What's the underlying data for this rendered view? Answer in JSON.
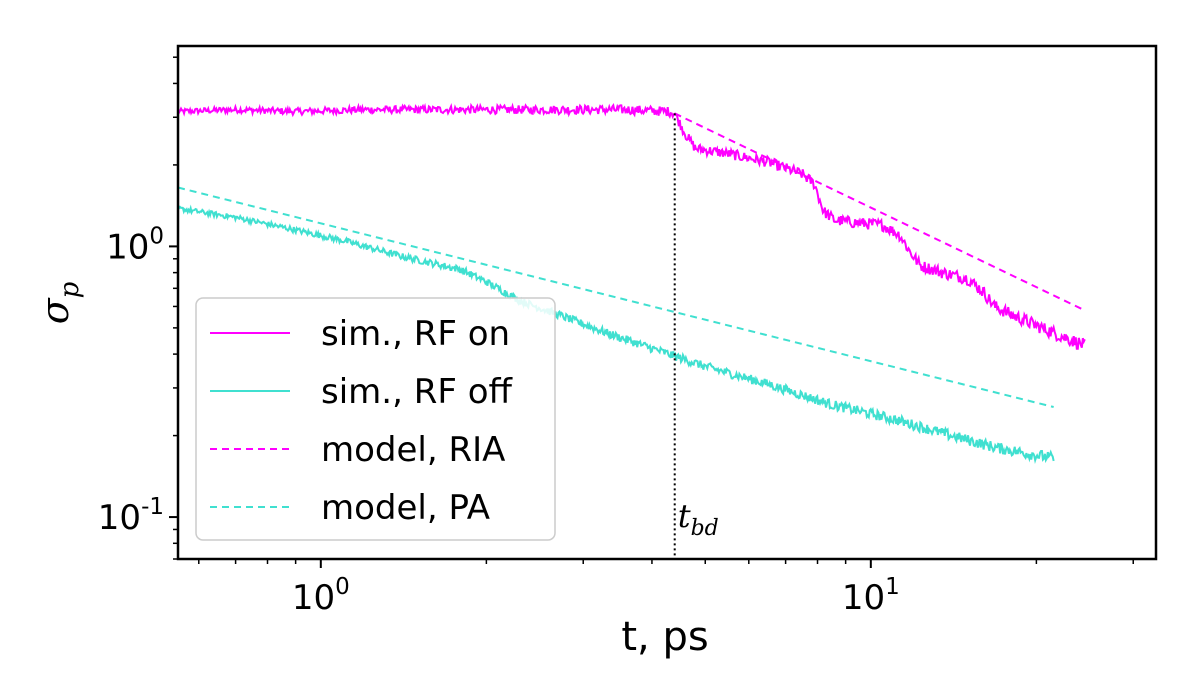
{
  "chart_data": {
    "type": "line",
    "xscale": "log",
    "yscale": "log",
    "xlim": [
      0.55,
      33
    ],
    "ylim": [
      0.07,
      5.5
    ],
    "xlabel": "t, ps",
    "ylabel_symbol": "σ",
    "ylabel_subscript": "p",
    "x_ticks": [
      {
        "value": 1,
        "base": "10",
        "exp": "0"
      },
      {
        "value": 10,
        "base": "10",
        "exp": "1"
      }
    ],
    "y_ticks": [
      {
        "value": 0.1,
        "base": "10",
        "exp": "-1"
      },
      {
        "value": 1,
        "base": "10",
        "exp": "0"
      }
    ],
    "legend_position": "lower-left",
    "annotation": {
      "x": 4.4,
      "symbol": "t",
      "subscript": "bd",
      "line_style": "dotted",
      "color": "#000000"
    },
    "series": [
      {
        "name": "sim., RF on",
        "style": "solid",
        "color": "#ff00ff",
        "points": [
          [
            0.55,
            3.15
          ],
          [
            0.7,
            3.2
          ],
          [
            0.9,
            3.15
          ],
          [
            1.2,
            3.2
          ],
          [
            1.6,
            3.2
          ],
          [
            2.2,
            3.2
          ],
          [
            3.0,
            3.2
          ],
          [
            3.6,
            3.2
          ],
          [
            4.3,
            3.15
          ],
          [
            4.4,
            3.1
          ],
          [
            4.6,
            2.6
          ],
          [
            4.8,
            2.3
          ],
          [
            5.5,
            2.2
          ],
          [
            6.5,
            2.05
          ],
          [
            7.5,
            1.85
          ],
          [
            7.9,
            1.7
          ],
          [
            8.2,
            1.35
          ],
          [
            8.6,
            1.25
          ],
          [
            9.5,
            1.22
          ],
          [
            10.5,
            1.2
          ],
          [
            11.3,
            1.1
          ],
          [
            11.8,
            0.95
          ],
          [
            12.3,
            0.85
          ],
          [
            13.5,
            0.8
          ],
          [
            15.0,
            0.76
          ],
          [
            16.0,
            0.68
          ],
          [
            16.8,
            0.6
          ],
          [
            18.0,
            0.56
          ],
          [
            20.0,
            0.51
          ],
          [
            22.0,
            0.47
          ],
          [
            24.5,
            0.43
          ]
        ],
        "noise": 0.035
      },
      {
        "name": "sim., RF off",
        "style": "solid",
        "color": "#40e0d0",
        "points": [
          [
            0.55,
            1.38
          ],
          [
            0.7,
            1.28
          ],
          [
            0.9,
            1.15
          ],
          [
            1.1,
            1.05
          ],
          [
            1.4,
            0.92
          ],
          [
            1.8,
            0.82
          ],
          [
            2.0,
            0.74
          ],
          [
            2.3,
            0.63
          ],
          [
            2.7,
            0.56
          ],
          [
            3.3,
            0.48
          ],
          [
            4.0,
            0.42
          ],
          [
            5.0,
            0.36
          ],
          [
            6.5,
            0.31
          ],
          [
            8.5,
            0.26
          ],
          [
            11.0,
            0.23
          ],
          [
            14.0,
            0.2
          ],
          [
            17.0,
            0.18
          ],
          [
            21.5,
            0.165
          ]
        ],
        "noise": 0.03
      },
      {
        "name": "model, RIA",
        "style": "dashed",
        "color": "#ff00ff",
        "points": [
          [
            4.4,
            3.1
          ],
          [
            24.5,
            0.58
          ]
        ],
        "noise": 0
      },
      {
        "name": "model, PA",
        "style": "dashed",
        "color": "#40e0d0",
        "points": [
          [
            0.55,
            1.65
          ],
          [
            21.5,
            0.255
          ]
        ],
        "noise": 0
      }
    ]
  }
}
